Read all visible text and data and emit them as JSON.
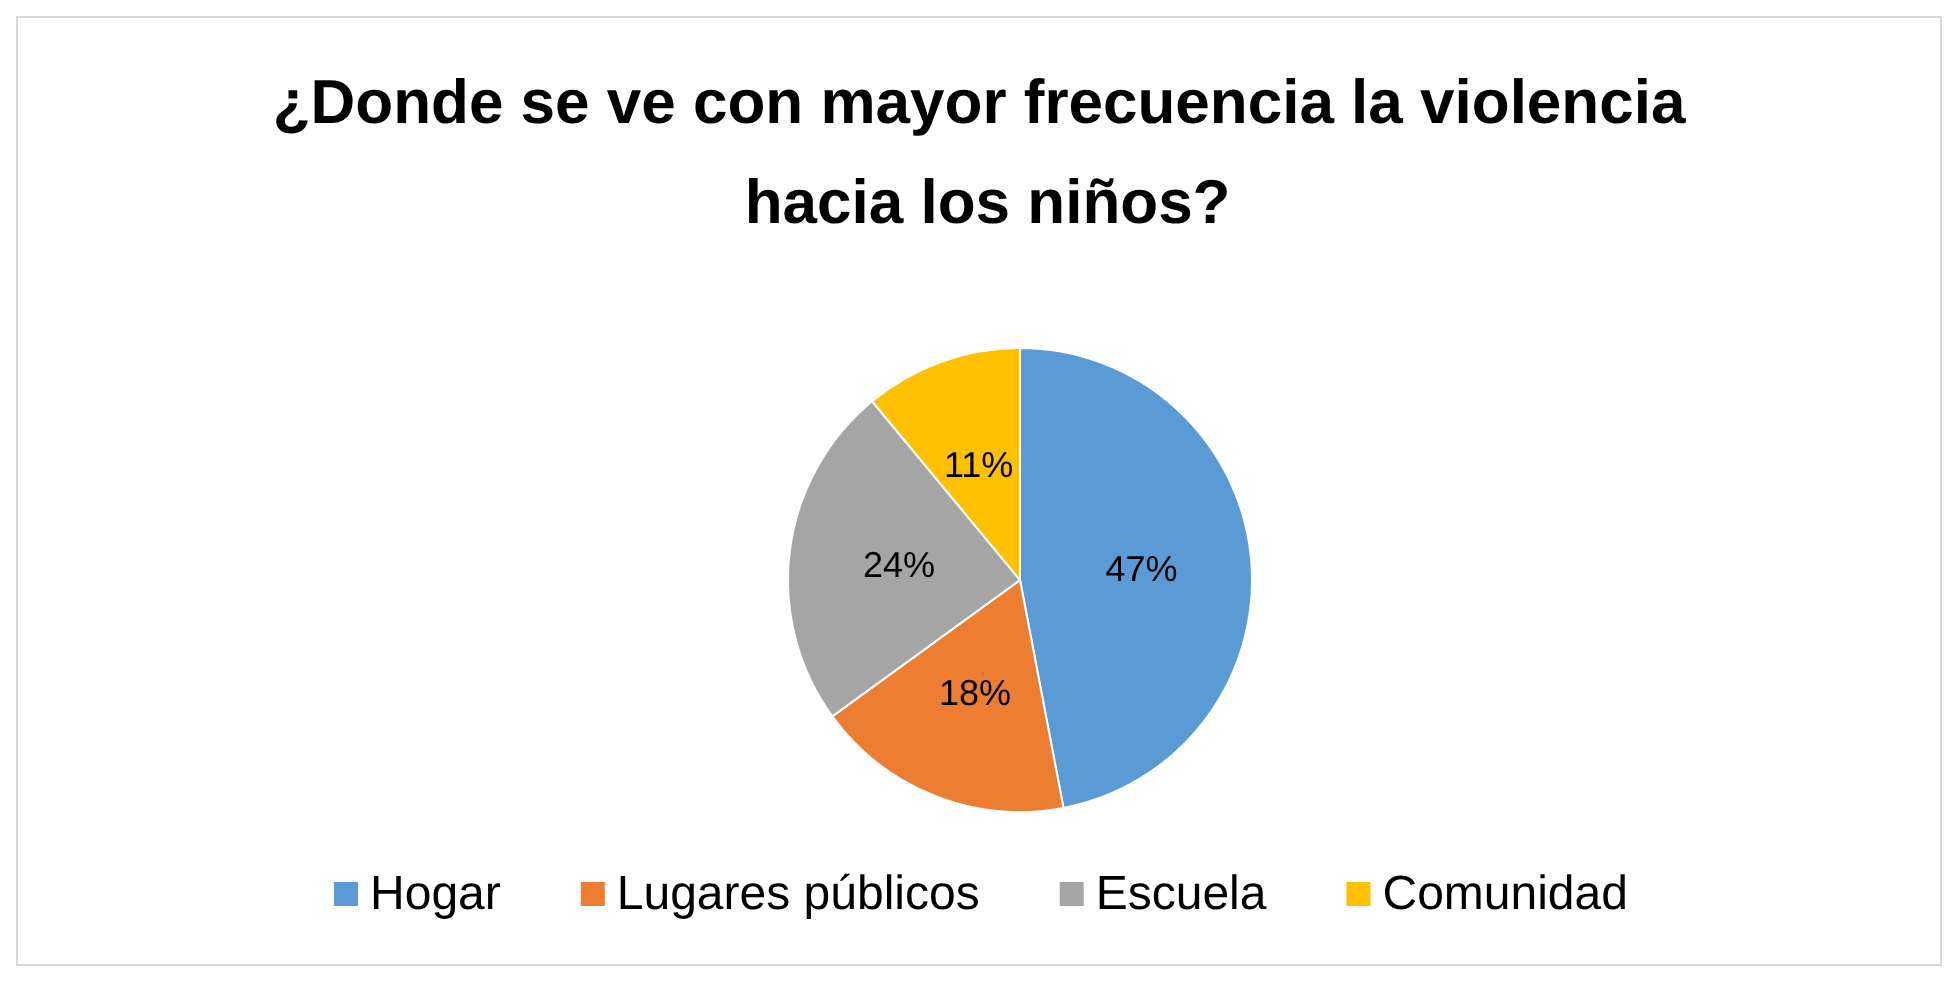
{
  "chart_data": {
    "type": "pie",
    "title": "¿Donde se ve con mayor frecuencia la violencia hacia los niños?",
    "categories": [
      "Hogar",
      "Lugares públicos",
      "Escuela",
      "Comunidad"
    ],
    "values": [
      47,
      18,
      24,
      11
    ],
    "colors": [
      "#5b9bd5",
      "#ed7d31",
      "#a5a5a5",
      "#ffc000"
    ],
    "value_labels": [
      "47%",
      "18%",
      "24%",
      "11%"
    ],
    "legend": "bottom"
  }
}
